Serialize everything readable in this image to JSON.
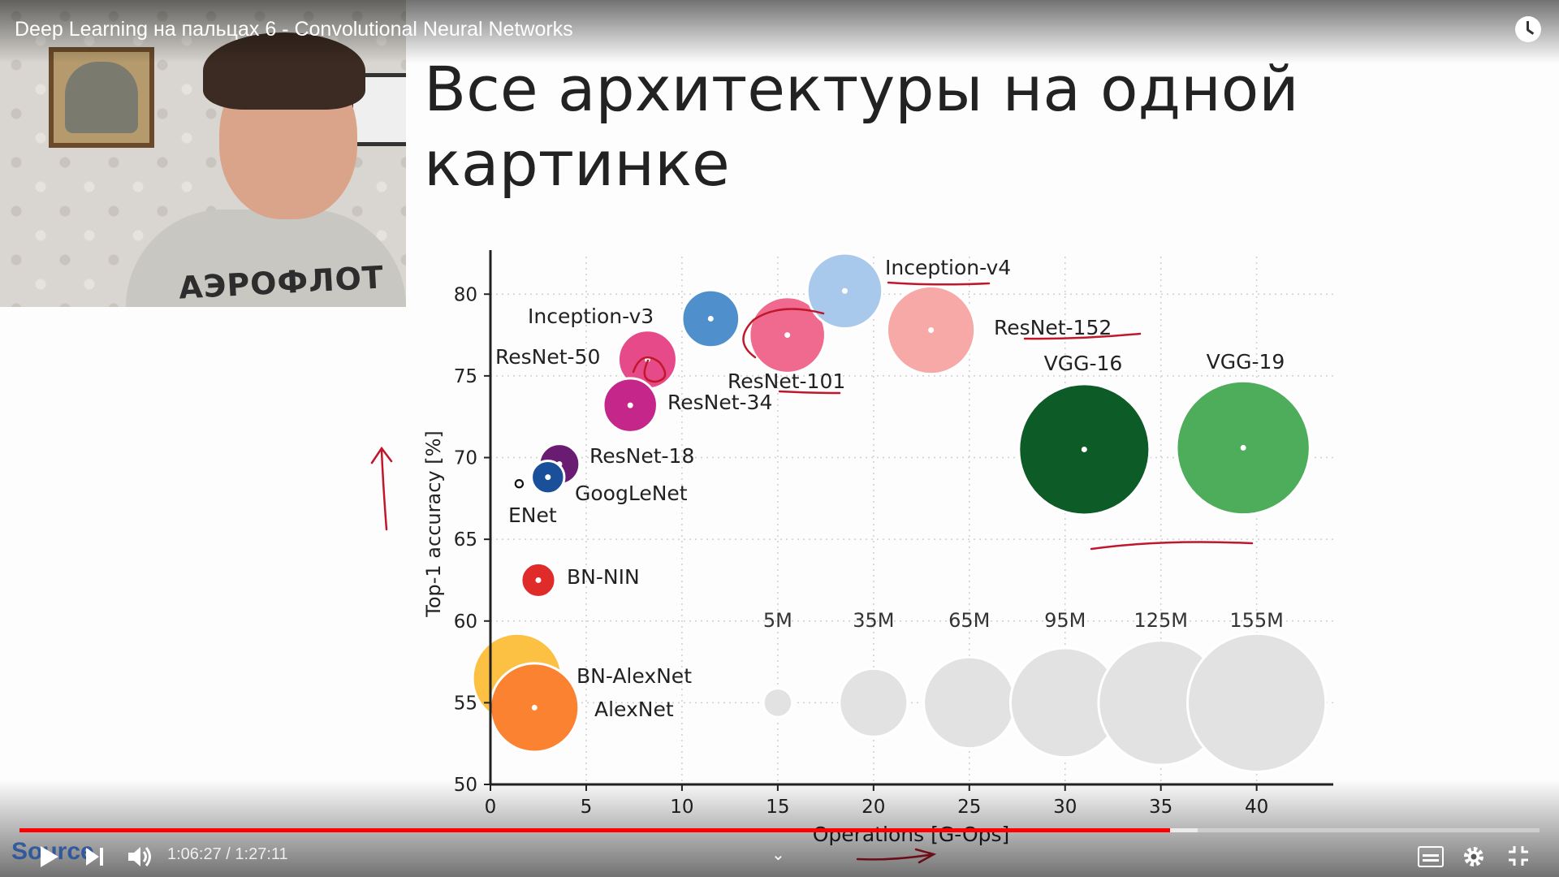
{
  "player": {
    "title": "Deep Learning на пальцах 6 - Convolutional Neural Networks",
    "current_time": "1:06:27",
    "duration": "1:27:11",
    "time_separator": " / ",
    "played_fraction": 0.757,
    "buffered_fraction": 0.775,
    "watermark": "Source",
    "accent_color": "#ff0000",
    "icons": [
      "clock-icon",
      "play-icon",
      "next-icon",
      "volume-icon",
      "chevron-down-icon",
      "subtitles-icon",
      "gear-icon",
      "fullscreen-exit-icon"
    ]
  },
  "webcam": {
    "shirt_print": "АЭРОФЛОТ"
  },
  "slide": {
    "heading_line1": "Все архитектуры на одной",
    "heading_line2": "картинке"
  },
  "chart_data": {
    "type": "scatter",
    "xlabel": "Operations [G-Ops]",
    "ylabel": "Top-1 accuracy [%]",
    "xlim": [
      0,
      44
    ],
    "ylim": [
      50,
      82
    ],
    "xticks": [
      0,
      5,
      10,
      15,
      20,
      25,
      30,
      35,
      40
    ],
    "yticks": [
      50,
      55,
      60,
      65,
      70,
      75,
      80
    ],
    "grid": true,
    "points": [
      {
        "name": "Inception-v4",
        "x": 18.5,
        "y": 80.2,
        "params_m": 43,
        "color": "#a9c9ec"
      },
      {
        "name": "ResNet-152",
        "x": 23.0,
        "y": 77.8,
        "params_m": 60,
        "color": "#f7a9a8"
      },
      {
        "name": "Inception-v3",
        "x": 11.5,
        "y": 78.5,
        "params_m": 24,
        "color": "#4f8fcb"
      },
      {
        "name": "ResNet-101",
        "x": 15.5,
        "y": 77.5,
        "params_m": 44,
        "color": "#f06a8f"
      },
      {
        "name": "ResNet-50",
        "x": 8.2,
        "y": 76.0,
        "params_m": 25,
        "color": "#e64a88"
      },
      {
        "name": "ResNet-34",
        "x": 7.3,
        "y": 73.2,
        "params_m": 21,
        "color": "#c4268a"
      },
      {
        "name": "ResNet-18",
        "x": 3.6,
        "y": 69.6,
        "params_m": 11,
        "color": "#6a1b72"
      },
      {
        "name": "GoogLeNet",
        "x": 3.0,
        "y": 68.8,
        "params_m": 6.8,
        "color": "#1a4f9a"
      },
      {
        "name": "ENet",
        "x": 1.5,
        "y": 68.4,
        "params_m": 0.4,
        "color": "#111111"
      },
      {
        "name": "BN-NIN",
        "x": 2.5,
        "y": 62.5,
        "params_m": 7.5,
        "color": "#e02b2b"
      },
      {
        "name": "VGG-16",
        "x": 31.0,
        "y": 70.5,
        "params_m": 138,
        "color": "#0d5c27"
      },
      {
        "name": "VGG-19",
        "x": 39.3,
        "y": 70.6,
        "params_m": 144,
        "color": "#4dad5b"
      },
      {
        "name": "BN-AlexNet",
        "x": 1.4,
        "y": 56.5,
        "params_m": 62,
        "color": "#fcc042"
      },
      {
        "name": "AlexNet",
        "x": 2.3,
        "y": 54.7,
        "params_m": 61,
        "color": "#fb8231"
      }
    ],
    "size_legend": [
      {
        "label": "5M",
        "x": 15
      },
      {
        "label": "35M",
        "x": 20
      },
      {
        "label": "65M",
        "x": 25
      },
      {
        "label": "95M",
        "x": 30
      },
      {
        "label": "125M",
        "x": 35
      },
      {
        "label": "155M",
        "x": 40
      }
    ],
    "size_legend_color": "#e2e2e2"
  }
}
